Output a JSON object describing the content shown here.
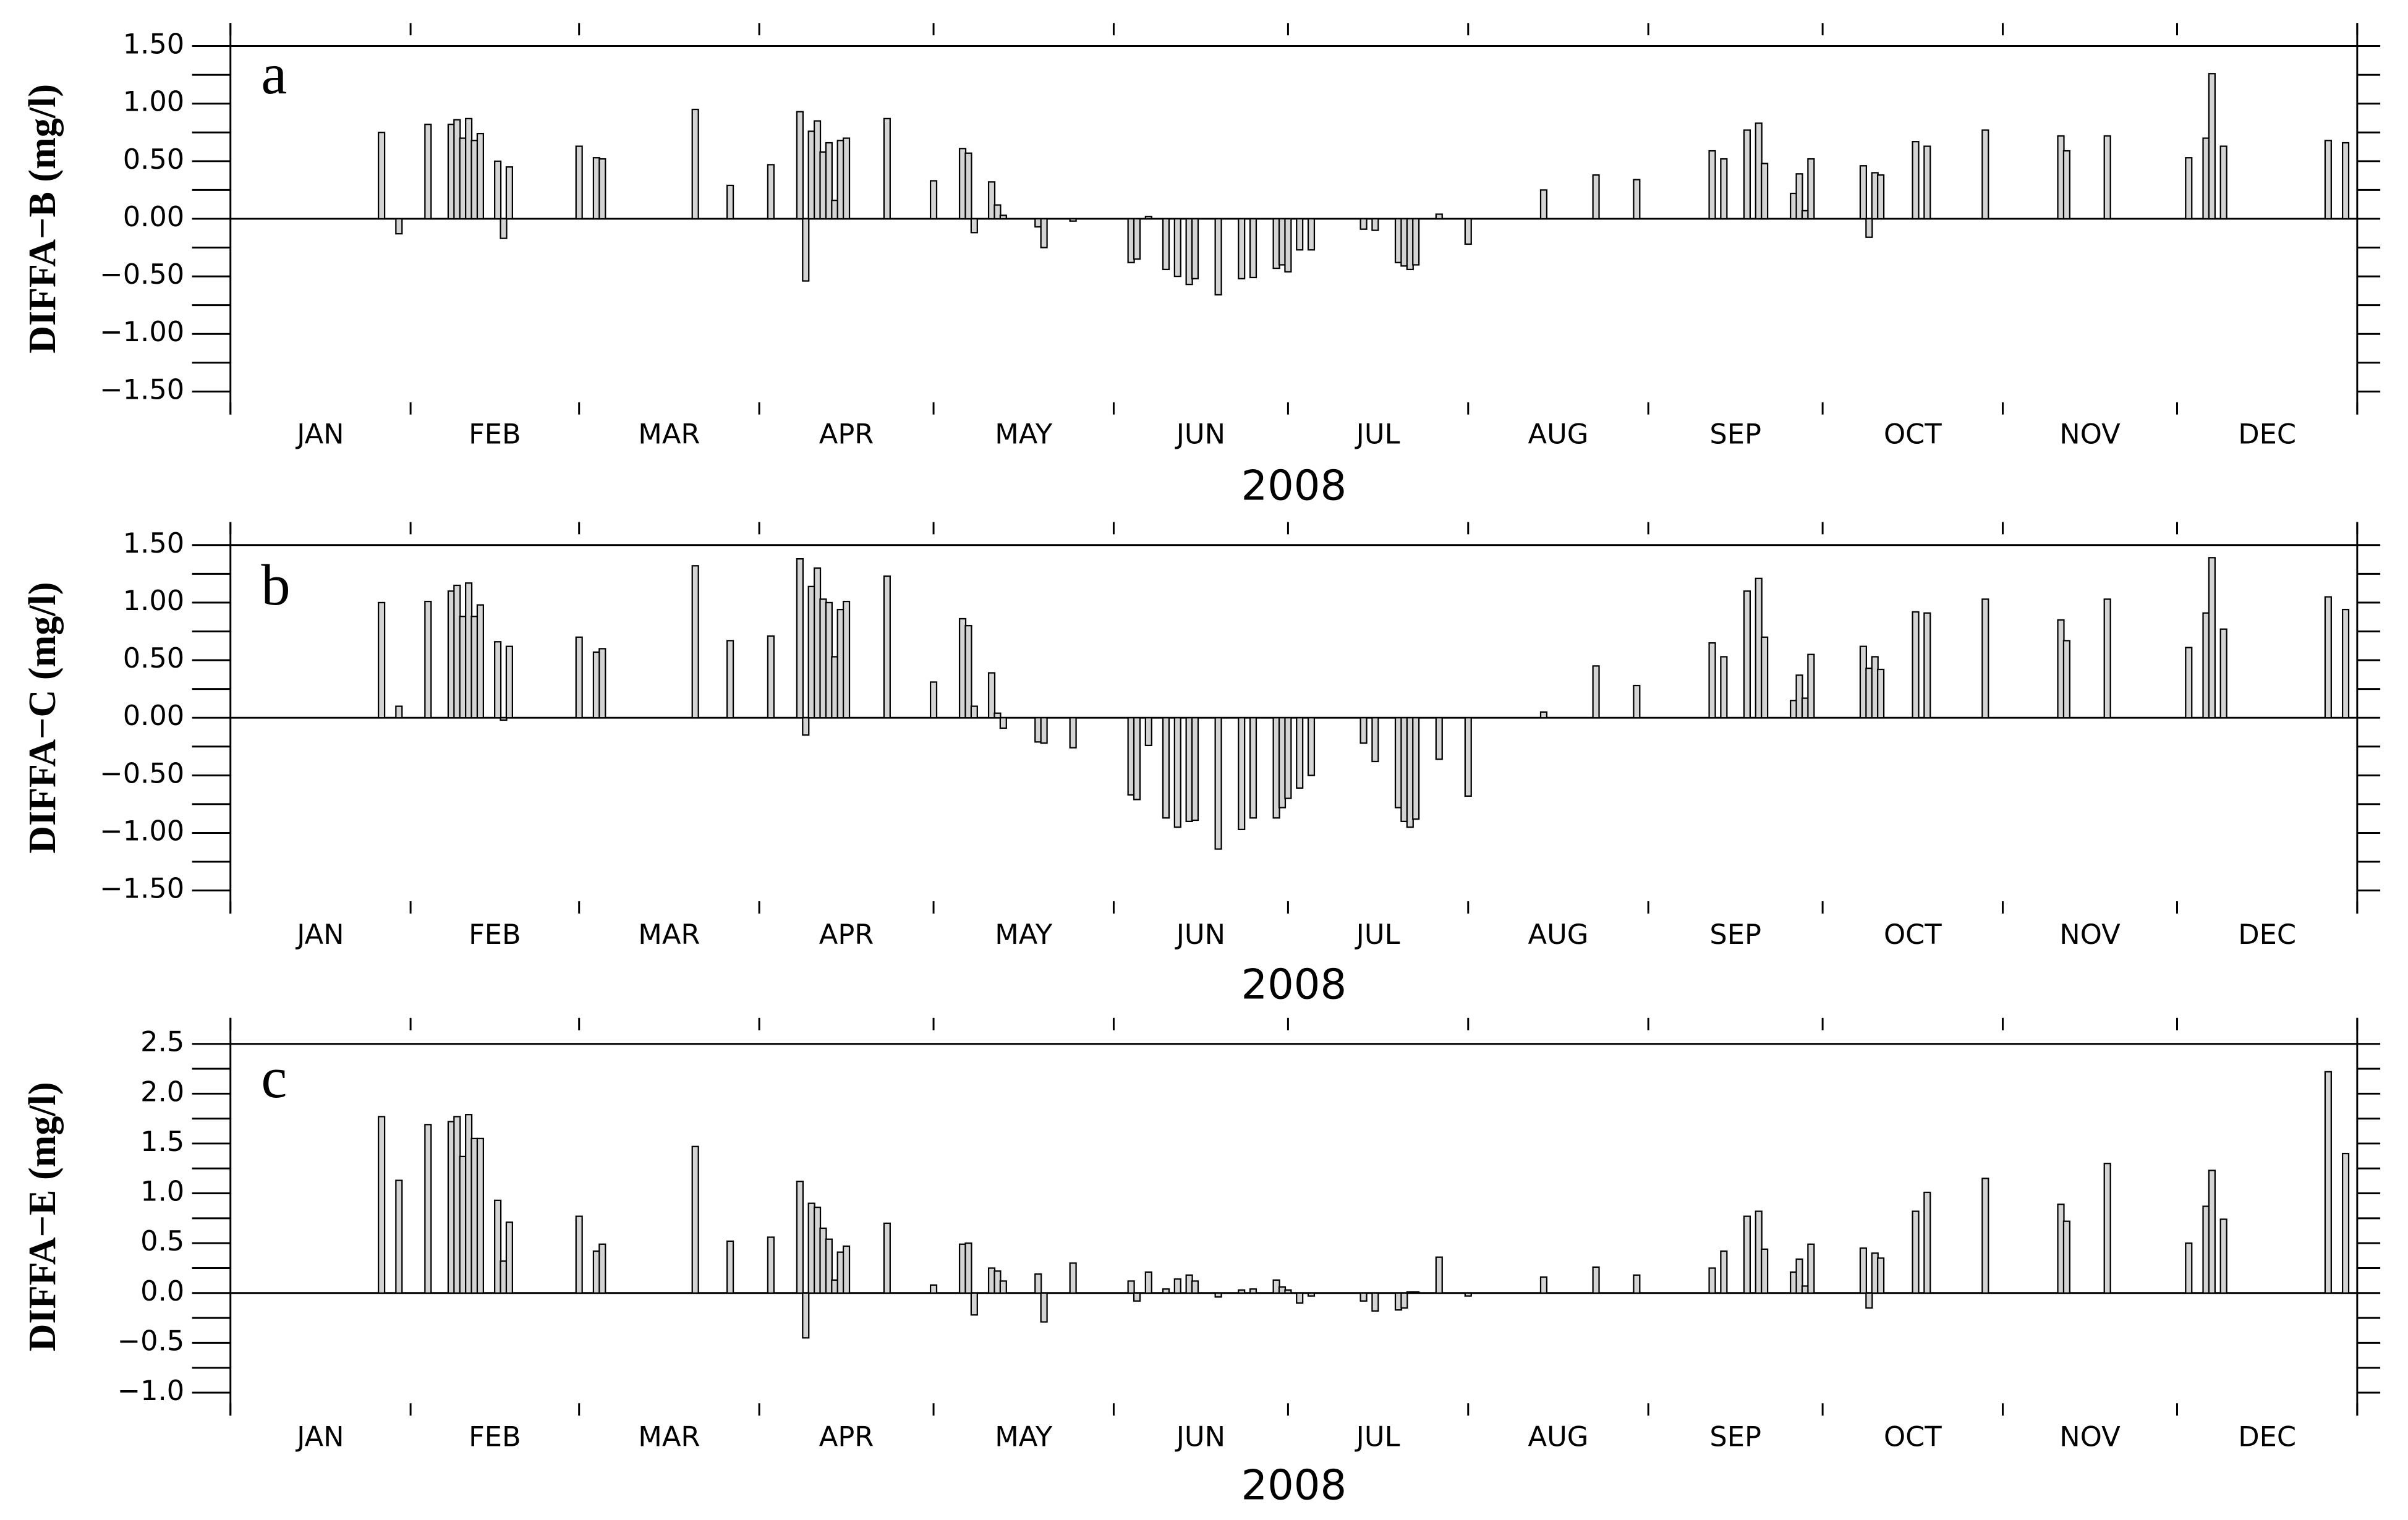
{
  "chart_data": [
    {
      "type": "bar",
      "annotation": "a",
      "ylabel": "DIFFA−B (mg/l)",
      "xlabel": "2008",
      "months": [
        "JAN",
        "FEB",
        "MAR",
        "APR",
        "MAY",
        "JUN",
        "JUL",
        "AUG",
        "SEP",
        "OCT",
        "NOV",
        "DEC"
      ],
      "xticks": [
        0,
        31,
        60,
        91,
        121,
        152,
        182,
        213,
        244,
        274,
        305,
        335,
        366
      ],
      "xlim": [
        0,
        366
      ],
      "ylim": [
        -1.7,
        1.7
      ],
      "yticks": [
        {
          "value": 1.5,
          "label": "1.50"
        },
        {
          "value": 1,
          "label": "1.00"
        },
        {
          "value": 0.5,
          "label": "0.50"
        },
        {
          "value": 0,
          "label": "0.00"
        },
        {
          "value": -0.5,
          "label": "−0.50"
        },
        {
          "value": -1,
          "label": "−1.00"
        },
        {
          "value": -1.5,
          "label": "−1.50"
        }
      ],
      "minor_yticks": [
        1.25,
        0.75,
        0.25,
        -0.25,
        -0.75,
        -1.25
      ],
      "color": "#d4d4d4",
      "x": [
        26,
        29,
        34,
        38,
        39,
        40,
        41,
        42,
        43,
        46,
        47,
        48,
        60,
        63,
        64,
        80,
        86,
        93,
        98,
        99,
        100,
        101,
        102,
        103,
        104,
        105,
        106,
        113,
        121,
        126,
        127,
        128,
        131,
        132,
        133,
        139,
        140,
        145,
        155,
        156,
        158,
        161,
        163,
        165,
        166,
        170,
        174,
        176,
        180,
        181,
        182,
        184,
        186,
        195,
        197,
        201,
        202,
        203,
        204,
        208,
        213,
        226,
        235,
        242,
        255,
        257,
        261,
        263,
        264,
        269,
        270,
        271,
        272,
        281,
        282,
        283,
        284,
        290,
        292,
        302,
        315,
        316,
        323,
        337,
        340,
        341,
        343,
        361,
        364
      ],
      "values": [
        0.75,
        -0.13,
        0.82,
        0.82,
        0.86,
        0.7,
        0.87,
        0.68,
        0.74,
        0.5,
        -0.17,
        0.45,
        0.63,
        0.53,
        0.52,
        0.95,
        0.29,
        0.47,
        0.93,
        -0.54,
        0.76,
        0.85,
        0.58,
        0.66,
        0.16,
        0.68,
        0.7,
        0.87,
        0.33,
        0.61,
        0.57,
        -0.12,
        0.32,
        0.12,
        0.03,
        -0.07,
        -0.25,
        -0.02,
        -0.38,
        -0.35,
        0.02,
        -0.44,
        -0.5,
        -0.57,
        -0.52,
        -0.66,
        -0.52,
        -0.51,
        -0.43,
        -0.4,
        -0.46,
        -0.27,
        -0.27,
        -0.09,
        -0.1,
        -0.38,
        -0.41,
        -0.44,
        -0.4,
        0.04,
        -0.22,
        0.25,
        0.38,
        0.34,
        0.59,
        0.52,
        0.77,
        0.83,
        0.48,
        0.22,
        0.39,
        0.07,
        0.52,
        0.46,
        -0.16,
        0.4,
        0.38,
        0.67,
        0.63,
        0.77,
        0.72,
        0.59,
        0.72,
        0.53,
        0.7,
        1.26,
        0.63,
        0.68,
        0.66
      ]
    },
    {
      "type": "bar",
      "annotation": "b",
      "ylabel": "DIFFA−C (mg/l)",
      "xlabel": "2008",
      "months": [
        "JAN",
        "FEB",
        "MAR",
        "APR",
        "MAY",
        "JUN",
        "JUL",
        "AUG",
        "SEP",
        "OCT",
        "NOV",
        "DEC"
      ],
      "xticks": [
        0,
        31,
        60,
        91,
        121,
        152,
        182,
        213,
        244,
        274,
        305,
        335,
        366
      ],
      "xlim": [
        0,
        366
      ],
      "ylim": [
        -1.7,
        1.7
      ],
      "yticks": [
        {
          "value": 1.5,
          "label": "1.50"
        },
        {
          "value": 1,
          "label": "1.00"
        },
        {
          "value": 0.5,
          "label": "0.50"
        },
        {
          "value": 0,
          "label": "0.00"
        },
        {
          "value": -0.5,
          "label": "−0.50"
        },
        {
          "value": -1,
          "label": "−1.00"
        },
        {
          "value": -1.5,
          "label": "−1.50"
        }
      ],
      "minor_yticks": [
        1.25,
        0.75,
        0.25,
        -0.25,
        -0.75,
        -1.25
      ],
      "color": "#d4d4d4",
      "x": [
        26,
        29,
        34,
        38,
        39,
        40,
        41,
        42,
        43,
        46,
        47,
        48,
        60,
        63,
        64,
        80,
        86,
        93,
        98,
        99,
        100,
        101,
        102,
        103,
        104,
        105,
        106,
        113,
        121,
        126,
        127,
        128,
        131,
        132,
        133,
        139,
        140,
        145,
        155,
        156,
        158,
        161,
        163,
        165,
        166,
        170,
        174,
        176,
        180,
        181,
        182,
        184,
        186,
        195,
        197,
        201,
        202,
        203,
        204,
        208,
        213,
        226,
        235,
        242,
        255,
        257,
        261,
        263,
        264,
        269,
        270,
        271,
        272,
        281,
        282,
        283,
        284,
        290,
        292,
        302,
        315,
        316,
        323,
        337,
        340,
        341,
        343,
        361,
        364
      ],
      "values": [
        1.0,
        0.1,
        1.01,
        1.1,
        1.15,
        0.88,
        1.17,
        0.88,
        0.98,
        0.66,
        -0.02,
        0.62,
        0.7,
        0.57,
        0.6,
        1.32,
        0.67,
        0.71,
        1.38,
        -0.15,
        1.14,
        1.3,
        1.03,
        1.0,
        0.53,
        0.94,
        1.01,
        1.23,
        0.31,
        0.86,
        0.8,
        0.1,
        0.39,
        0.04,
        -0.09,
        -0.21,
        -0.22,
        -0.26,
        -0.67,
        -0.71,
        -0.24,
        -0.87,
        -0.95,
        -0.9,
        -0.89,
        -1.14,
        -0.97,
        -0.87,
        -0.87,
        -0.78,
        -0.7,
        -0.61,
        -0.5,
        -0.22,
        -0.38,
        -0.78,
        -0.9,
        -0.95,
        -0.88,
        -0.36,
        -0.68,
        0.05,
        0.45,
        0.28,
        0.65,
        0.53,
        1.1,
        1.21,
        0.7,
        0.15,
        0.37,
        0.17,
        0.55,
        0.62,
        0.43,
        0.53,
        0.42,
        0.92,
        0.91,
        1.03,
        0.85,
        0.67,
        1.03,
        0.61,
        0.91,
        1.39,
        0.77,
        1.05,
        0.94
      ]
    },
    {
      "type": "bar",
      "annotation": "c",
      "ylabel": "DIFFA−E (mg/l)",
      "xlabel": "2008",
      "months": [
        "JAN",
        "FEB",
        "MAR",
        "APR",
        "MAY",
        "JUN",
        "JUL",
        "AUG",
        "SEP",
        "OCT",
        "NOV",
        "DEC"
      ],
      "xticks": [
        0,
        31,
        60,
        91,
        121,
        152,
        182,
        213,
        244,
        274,
        305,
        335,
        366
      ],
      "xlim": [
        0,
        366
      ],
      "ylim": [
        -1.23,
        2.76
      ],
      "yticks": [
        2.5,
        {
          "value": 2,
          "label": "2.0"
        },
        1.5,
        {
          "value": 1,
          "label": "1.0"
        },
        0.5,
        {
          "value": 0,
          "label": "0.0"
        },
        {
          "value": -0.5,
          "label": "−0.5"
        },
        {
          "value": -1,
          "label": "−1.0"
        }
      ],
      "minor_yticks": [
        2.25,
        1.75,
        1.25,
        0.75,
        0.25,
        -0.25,
        -0.75
      ],
      "color": "#d4d4d4",
      "x": [
        26,
        29,
        34,
        38,
        39,
        40,
        41,
        42,
        43,
        46,
        47,
        48,
        60,
        63,
        64,
        80,
        86,
        93,
        98,
        99,
        100,
        101,
        102,
        103,
        104,
        105,
        106,
        113,
        121,
        126,
        127,
        128,
        131,
        132,
        133,
        139,
        140,
        145,
        155,
        156,
        158,
        161,
        163,
        165,
        166,
        170,
        174,
        176,
        180,
        181,
        182,
        184,
        186,
        195,
        197,
        201,
        202,
        203,
        204,
        208,
        213,
        226,
        235,
        242,
        255,
        257,
        261,
        263,
        264,
        269,
        270,
        271,
        272,
        281,
        282,
        283,
        284,
        290,
        292,
        302,
        315,
        316,
        323,
        337,
        340,
        341,
        343,
        361,
        364
      ],
      "values": [
        1.77,
        1.13,
        1.69,
        1.72,
        1.77,
        1.37,
        1.79,
        1.55,
        1.55,
        0.93,
        0.32,
        0.71,
        0.77,
        0.42,
        0.49,
        1.47,
        0.52,
        0.56,
        1.12,
        -0.45,
        0.9,
        0.86,
        0.65,
        0.54,
        0.13,
        0.41,
        0.47,
        0.7,
        0.08,
        0.49,
        0.5,
        -0.22,
        0.25,
        0.22,
        0.12,
        0.19,
        -0.29,
        0.3,
        0.12,
        -0.08,
        0.21,
        0.04,
        0.14,
        0.18,
        0.12,
        -0.04,
        0.03,
        0.04,
        0.13,
        0.06,
        0.03,
        -0.1,
        -0.03,
        -0.08,
        -0.18,
        -0.17,
        -0.15,
        0.01,
        0.01,
        0.36,
        -0.03,
        0.16,
        0.26,
        0.18,
        0.25,
        0.42,
        0.77,
        0.82,
        0.44,
        0.21,
        0.34,
        0.07,
        0.49,
        0.45,
        -0.15,
        0.4,
        0.35,
        0.82,
        1.01,
        1.15,
        0.89,
        0.72,
        1.3,
        0.5,
        0.87,
        1.23,
        0.74,
        2.22,
        1.4
      ]
    }
  ]
}
